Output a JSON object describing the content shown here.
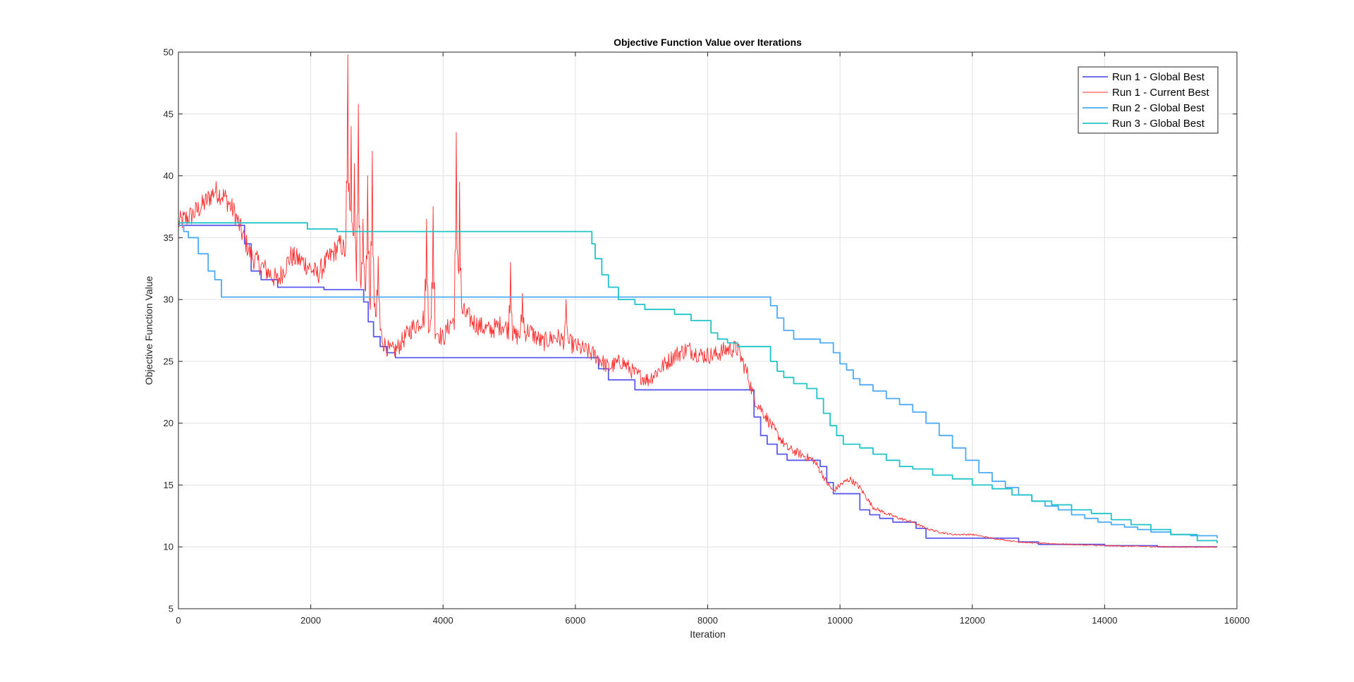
{
  "chart_data": {
    "type": "line",
    "title": "Objective Function Value over Iterations",
    "xlabel": "Iteration",
    "ylabel": "Objective Function Value",
    "xlim": [
      0,
      16000
    ],
    "ylim": [
      5,
      50
    ],
    "xticks": [
      0,
      2000,
      4000,
      6000,
      8000,
      10000,
      12000,
      14000,
      16000
    ],
    "yticks": [
      5,
      10,
      15,
      20,
      25,
      30,
      35,
      40,
      45,
      50
    ],
    "grid": true,
    "legend_position": "top-right",
    "series": [
      {
        "name": "Run 1 - Global Best",
        "color": "#5b5bef",
        "style": "step",
        "x": [
          0,
          900,
          1000,
          1100,
          1250,
          1500,
          2200,
          2800,
          2870,
          2950,
          3050,
          3150,
          3280,
          6100,
          6350,
          6500,
          6900,
          8650,
          8700,
          8800,
          8900,
          9050,
          9200,
          9700,
          9800,
          9900,
          10300,
          10450,
          10600,
          10800,
          11150,
          11300,
          12700,
          13000,
          14000,
          14800,
          15700
        ],
        "y": [
          36.0,
          36.0,
          34.5,
          32.3,
          31.6,
          31.0,
          30.8,
          29.8,
          28.2,
          27.0,
          26.2,
          25.7,
          25.3,
          25.3,
          24.4,
          23.5,
          22.7,
          22.7,
          20.5,
          19.0,
          18.3,
          17.5,
          17.0,
          16.5,
          15.2,
          14.3,
          13.0,
          12.6,
          12.3,
          12.0,
          11.5,
          10.7,
          10.4,
          10.2,
          10.1,
          10.0,
          10.0
        ]
      },
      {
        "name": "Run 1 - Current Best",
        "color": "#ff2b2b",
        "style": "noisy",
        "x": [
          0,
          200,
          400,
          550,
          700,
          850,
          950,
          1100,
          1300,
          1500,
          1700,
          1900,
          2100,
          2300,
          2450,
          2600,
          2750,
          2900,
          3000,
          3100,
          3200,
          3300,
          3500,
          3700,
          3900,
          4000,
          4100,
          4300,
          4500,
          4700,
          4900,
          5100,
          5300,
          5500,
          5700,
          5900,
          6100,
          6300,
          6500,
          6700,
          6900,
          7100,
          7300,
          7500,
          7700,
          7900,
          8100,
          8300,
          8450,
          8600,
          8700,
          8850,
          9000,
          9200,
          9400,
          9600,
          9700,
          9800,
          9900,
          10000,
          10150,
          10300,
          10500,
          10700,
          10900,
          11100,
          11300,
          11500,
          11700,
          12000,
          12300,
          12700,
          13000,
          13500,
          14000,
          14500,
          15000,
          15700
        ],
        "y": [
          36.2,
          36.8,
          37.8,
          38.8,
          38.3,
          37.0,
          35.5,
          33.5,
          32.5,
          31.5,
          33.5,
          33.0,
          32.0,
          33.5,
          34.5,
          33.0,
          31.0,
          30.0,
          28.5,
          26.5,
          25.8,
          26.0,
          27.5,
          28.5,
          27.5,
          26.8,
          28.0,
          29.0,
          28.0,
          27.5,
          28.0,
          27.0,
          27.5,
          26.5,
          27.0,
          26.5,
          26.0,
          25.5,
          24.5,
          25.0,
          24.0,
          23.5,
          24.5,
          25.5,
          26.0,
          25.5,
          25.5,
          26.0,
          26.0,
          24.0,
          22.0,
          20.8,
          19.5,
          18.0,
          17.5,
          17.0,
          16.2,
          15.2,
          14.5,
          15.0,
          15.5,
          14.8,
          13.2,
          12.7,
          12.3,
          12.0,
          11.5,
          11.2,
          11.0,
          11.0,
          10.7,
          10.4,
          10.3,
          10.2,
          10.1,
          10.05,
          10.0,
          10.0
        ]
      },
      {
        "name": "Run 2 - Global Best",
        "color": "#4daaf7",
        "style": "step",
        "x": [
          0,
          80,
          150,
          300,
          450,
          550,
          650,
          700,
          8800,
          8950,
          9050,
          9150,
          9300,
          9700,
          9900,
          10000,
          10100,
          10200,
          10300,
          10500,
          10700,
          10900,
          11100,
          11300,
          11500,
          11700,
          11900,
          12100,
          12300,
          12500,
          12700,
          12900,
          13100,
          13300,
          13500,
          13700,
          13900,
          14100,
          14300,
          14500,
          14700,
          15000,
          15300,
          15700
        ],
        "y": [
          36.0,
          35.5,
          35.0,
          33.7,
          32.3,
          31.6,
          30.2,
          30.2,
          30.2,
          29.5,
          28.5,
          27.5,
          26.8,
          26.5,
          25.7,
          24.8,
          24.3,
          23.6,
          23.1,
          22.6,
          22.0,
          21.5,
          20.9,
          20.0,
          19.0,
          18.0,
          17.0,
          16.0,
          15.3,
          14.8,
          14.2,
          13.7,
          13.3,
          13.0,
          12.6,
          12.3,
          12.0,
          11.8,
          11.6,
          11.4,
          11.2,
          11.0,
          10.9,
          10.7
        ]
      },
      {
        "name": "Run 3 - Global Best",
        "color": "#1fc4c9",
        "style": "step",
        "x": [
          0,
          1850,
          1950,
          2400,
          6200,
          6250,
          6300,
          6400,
          6500,
          6650,
          6900,
          7050,
          7500,
          7750,
          8050,
          8150,
          8300,
          8450,
          8600,
          8950,
          9050,
          9150,
          9300,
          9500,
          9650,
          9750,
          9850,
          9950,
          10050,
          10300,
          10500,
          10700,
          10900,
          11100,
          11400,
          11700,
          12000,
          12300,
          12600,
          12900,
          13200,
          13500,
          13800,
          14100,
          14400,
          14700,
          15000,
          15400,
          15700
        ],
        "y": [
          36.2,
          36.2,
          35.7,
          35.5,
          35.5,
          34.5,
          33.3,
          32.0,
          31.0,
          30.0,
          29.6,
          29.2,
          28.8,
          28.3,
          27.3,
          26.8,
          26.5,
          26.2,
          26.2,
          25.0,
          24.2,
          23.7,
          23.2,
          22.8,
          22.0,
          20.8,
          19.8,
          19.0,
          18.3,
          18.0,
          17.5,
          17.0,
          16.5,
          16.3,
          15.8,
          15.5,
          15.0,
          14.7,
          14.2,
          13.7,
          13.4,
          13.0,
          12.7,
          12.2,
          11.8,
          11.4,
          11.0,
          10.5,
          10.3
        ]
      }
    ]
  }
}
